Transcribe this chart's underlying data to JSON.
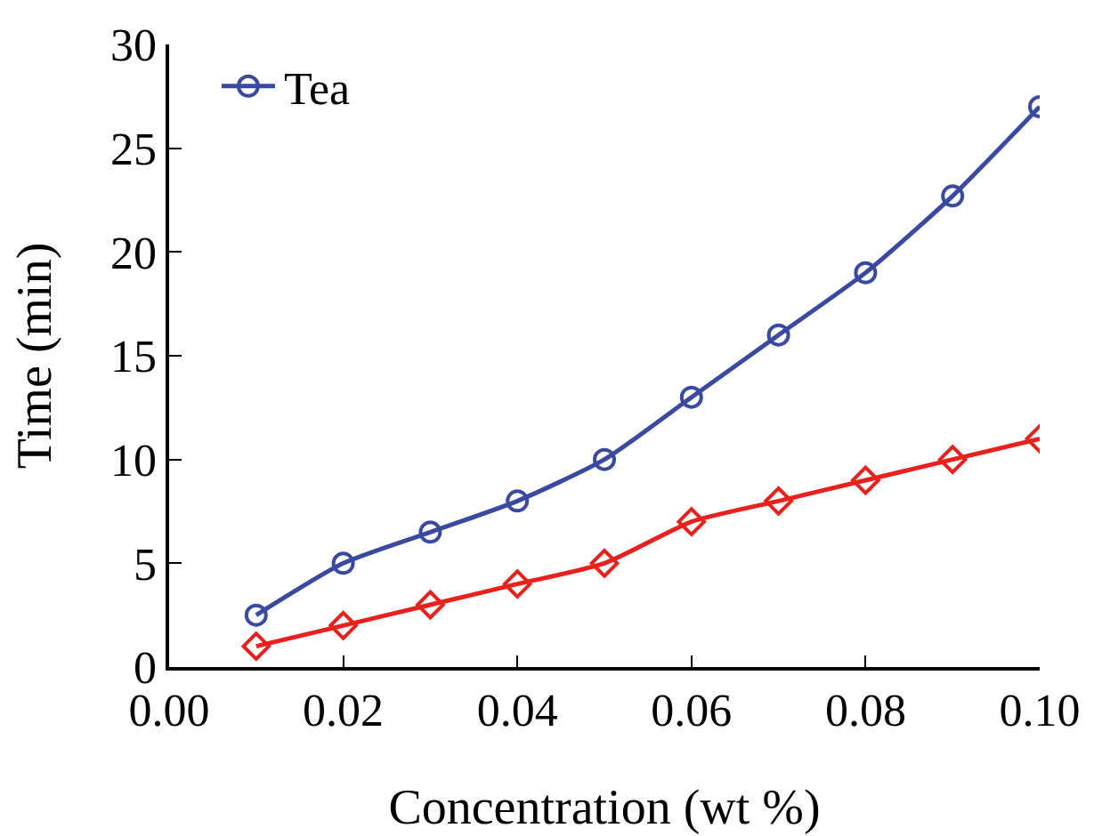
{
  "chart_data": {
    "type": "line",
    "xlabel": "Concentration (wt %)",
    "ylabel": "Time (min)",
    "x": [
      0.01,
      0.02,
      0.03,
      0.04,
      0.05,
      0.06,
      0.07,
      0.08,
      0.09,
      0.1
    ],
    "series": [
      {
        "color": "#e8211d",
        "marker": "diamond",
        "values": [
          1,
          2,
          3,
          4,
          5,
          7,
          8,
          9,
          10,
          11
        ]
      },
      {
        "name": "Tea",
        "color": "#3a4aa0",
        "marker": "circle",
        "values": [
          2.5,
          5,
          6.5,
          8,
          10,
          13,
          16,
          19,
          22.7,
          27
        ]
      }
    ],
    "xlim": [
      0,
      0.1
    ],
    "xticks": [
      {
        "value": 0,
        "label": "0.00"
      },
      {
        "value": 0.02,
        "label": "0.02"
      },
      {
        "value": 0.04,
        "label": "0.04"
      },
      {
        "value": 0.06,
        "label": "0.06"
      },
      {
        "value": 0.08,
        "label": "0.08"
      },
      {
        "value": 0.1,
        "label": "0.10"
      }
    ],
    "ylim": [
      0,
      30
    ],
    "yticks": [
      0,
      5,
      10,
      15,
      20,
      25,
      30
    ],
    "grid": false,
    "legend": "top left"
  }
}
